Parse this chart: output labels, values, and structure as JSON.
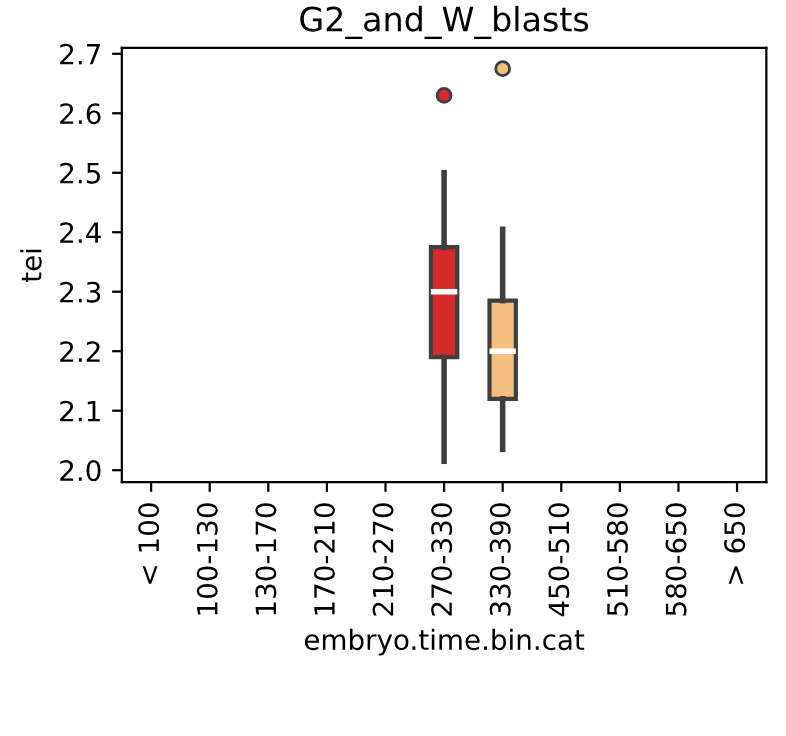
{
  "chart_data": {
    "type": "box",
    "title": "G2_and_W_blasts",
    "xlabel": "embryo.time.bin.cat",
    "ylabel": "tei",
    "categories": [
      "< 100",
      "100-130",
      "130-170",
      "170-210",
      "210-270",
      "270-330",
      "330-390",
      "450-510",
      "510-580",
      "580-650",
      "> 650"
    ],
    "boxes": [
      null,
      null,
      null,
      null,
      null,
      {
        "low": 2.015,
        "q1": 2.19,
        "median": 2.3,
        "q3": 2.375,
        "high": 2.5,
        "outliers": [
          2.63
        ]
      },
      {
        "low": 2.035,
        "q1": 2.12,
        "median": 2.2,
        "q3": 2.285,
        "high": 2.405,
        "outliers": [
          2.675
        ]
      },
      null,
      null,
      null,
      null
    ],
    "colors": [
      null,
      null,
      null,
      null,
      null,
      "#d42a2c",
      "#f2bf7f",
      null,
      null,
      null,
      null
    ],
    "ylim": [
      1.98,
      2.71
    ],
    "yticks": [
      {
        "value": 2,
        "label": "2.0"
      },
      2.1,
      2.2,
      2.3,
      2.4,
      2.5,
      2.6,
      2.7
    ],
    "grid": false
  }
}
